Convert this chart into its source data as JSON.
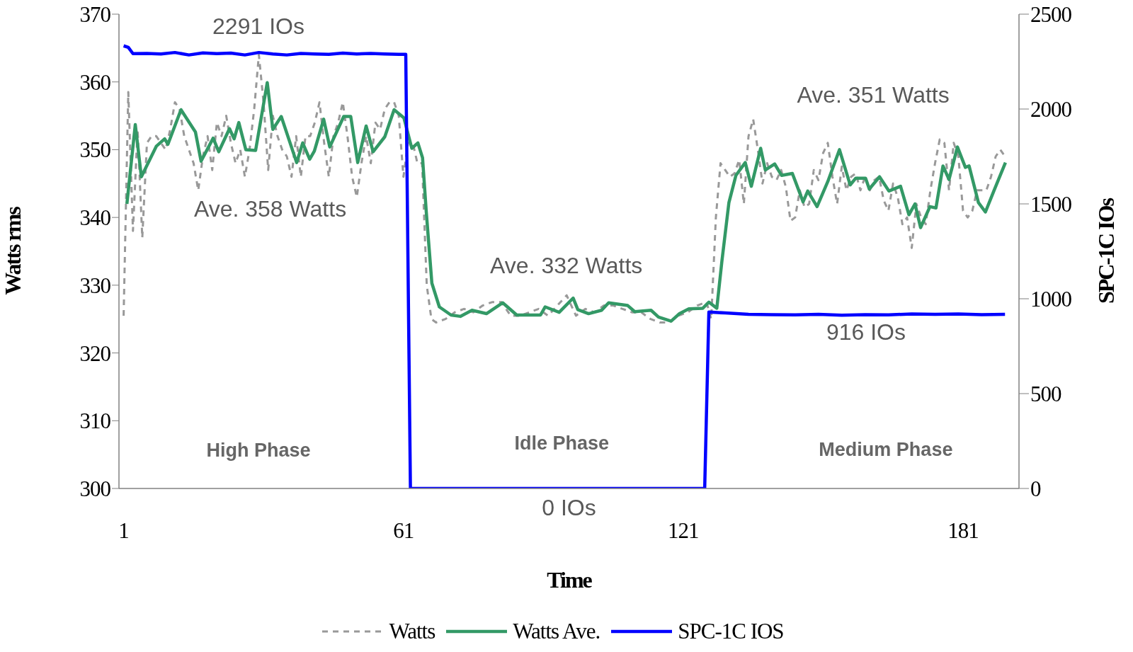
{
  "chart_data": {
    "type": "line",
    "xlabel": "Time",
    "ylabel": "Watts rms",
    "y2label": "SPC-1C IOs",
    "xlim": [
      0,
      193
    ],
    "xticks": [
      1,
      61,
      121,
      181
    ],
    "ylim": [
      300,
      370
    ],
    "yticks": [
      300,
      310,
      320,
      330,
      340,
      350,
      360,
      370
    ],
    "y2lim": [
      0,
      2500
    ],
    "y2ticks": [
      0,
      500,
      1000,
      1500,
      2000,
      2500
    ],
    "grid": false,
    "legend": "bottom",
    "marker": "none",
    "series": [
      {
        "name": "Watts",
        "color": "#999999",
        "line_style": "dashed",
        "x": [
          1,
          2,
          3,
          4,
          5,
          6,
          7,
          8,
          9,
          10,
          11,
          12,
          13,
          14,
          15,
          16,
          17,
          18,
          19,
          20,
          21,
          22,
          23,
          24,
          25,
          26,
          27,
          28,
          29,
          30,
          31,
          32,
          33,
          34,
          35,
          36,
          37,
          38,
          39,
          40,
          41,
          42,
          43,
          44,
          45,
          46,
          47,
          48,
          49,
          50,
          51,
          52,
          53,
          54,
          55,
          56,
          57,
          58,
          59,
          60,
          61,
          62,
          63,
          64,
          65,
          66,
          67,
          68,
          70,
          72,
          74,
          76,
          78,
          80,
          82,
          84,
          86,
          88,
          90,
          92,
          94,
          96,
          98,
          100,
          102,
          104,
          106,
          108,
          110,
          112,
          114,
          116,
          118,
          120,
          122,
          124,
          126,
          127,
          128,
          129,
          130,
          131,
          132,
          133,
          134,
          135,
          136,
          137,
          138,
          139,
          140,
          141,
          142,
          143,
          144,
          145,
          146,
          147,
          148,
          149,
          150,
          151,
          152,
          153,
          154,
          155,
          156,
          157,
          158,
          159,
          160,
          161,
          162,
          163,
          164,
          165,
          166,
          167,
          168,
          169,
          170,
          171,
          172,
          173,
          174,
          175,
          176,
          177,
          178,
          179,
          180,
          181,
          182,
          183,
          184,
          185,
          186,
          187,
          188,
          189,
          190
        ],
        "values": [
          325.5,
          358.5,
          338,
          353,
          337,
          351,
          352,
          352,
          351,
          350,
          353,
          357,
          356,
          352,
          350,
          348,
          344,
          349,
          352,
          347,
          354,
          352,
          355,
          351,
          348,
          350,
          346,
          350,
          356,
          364,
          357,
          347,
          355,
          352,
          350,
          349,
          346,
          352,
          346,
          352,
          352,
          354,
          357,
          351,
          346,
          352,
          354,
          357,
          352,
          346,
          343,
          348,
          352,
          348,
          354,
          353,
          356,
          357,
          357,
          355,
          346,
          351,
          351,
          348,
          348,
          330,
          325,
          324.5,
          325,
          326,
          326.5,
          326,
          327,
          327.5,
          327.5,
          325.5,
          325.5,
          326,
          326.5,
          325.5,
          327,
          328.5,
          325.5,
          326.5,
          326,
          327,
          327,
          326.5,
          326,
          326,
          325,
          324.5,
          324.5,
          325.5,
          326,
          327,
          327.5,
          325,
          340,
          348,
          347,
          346,
          346.5,
          348.5,
          342,
          352,
          354.5,
          350,
          345,
          348,
          346,
          345.5,
          347,
          344.5,
          339.5,
          340,
          344,
          341.5,
          342,
          347,
          345.5,
          349.5,
          351,
          346,
          342,
          347.5,
          344,
          346,
          346.5,
          344,
          346,
          344,
          345.5,
          346,
          342.5,
          341,
          345,
          343,
          339,
          340,
          335.5,
          342,
          340,
          339,
          344,
          348,
          351.5,
          351,
          344,
          351,
          349,
          341,
          340,
          341,
          344,
          344,
          344,
          346,
          349,
          350,
          349
        ]
      },
      {
        "name": "Watts Ave.",
        "color": "#339966",
        "line_style": "solid",
        "x": [
          1.7,
          3.5,
          4.8,
          8,
          9.8,
          10.5,
          13.3,
          16.4,
          17.6,
          20.2,
          21.4,
          23.7,
          24.7,
          25.7,
          27.2,
          29.3,
          31.8,
          33,
          34.8,
          38.1,
          39.4,
          40.9,
          41.9,
          43.9,
          45.2,
          48.2,
          49.7,
          51.2,
          53,
          54.5,
          57,
          59,
          61.1,
          62.8,
          64.1,
          65.1,
          65.9,
          67.1,
          68.7,
          71.2,
          73.2,
          75.7,
          78.8,
          82.3,
          85.3,
          90.4,
          91.4,
          94.4,
          97.4,
          98.4,
          100.7,
          103.5,
          105,
          109.1,
          110.6,
          114.1,
          115.7,
          118.4,
          120.2,
          122.2,
          125.2,
          126.5,
          128.2,
          129.3,
          130.8,
          132.3,
          134.3,
          135.6,
          137.6,
          138.6,
          140.6,
          142.1,
          144.4,
          146.7,
          147.7,
          149.7,
          152,
          154.5,
          156.8,
          158,
          160.1,
          160.9,
          163.1,
          165.1,
          167.6,
          169.4,
          170.7,
          171.9,
          173.9,
          175.2,
          176.7,
          178,
          179.8,
          181.5,
          182.3,
          184.3,
          185.8,
          187.6,
          190.1
        ],
        "values": [
          342,
          353.7,
          346,
          350.5,
          351.6,
          350.8,
          355.9,
          352.6,
          348.3,
          351.7,
          349.7,
          353.1,
          351.6,
          354,
          350,
          349.9,
          359.9,
          353,
          354.9,
          348.1,
          351,
          348.6,
          349.8,
          354.5,
          350.4,
          354.9,
          354.9,
          348.1,
          353.5,
          349.7,
          351.9,
          355.9,
          354.7,
          350.2,
          351,
          348.8,
          340.8,
          330.3,
          326.8,
          325.6,
          325.4,
          326.3,
          325.8,
          327.4,
          325.6,
          325.6,
          326.8,
          326,
          328.1,
          326.4,
          325.8,
          326.3,
          327.4,
          327,
          326.1,
          326.3,
          325.3,
          324.7,
          325.8,
          326.5,
          326.6,
          327.5,
          326.6,
          333.6,
          342.2,
          346.2,
          348.1,
          344.6,
          350.2,
          347,
          347.9,
          346.2,
          346.5,
          342.3,
          343.9,
          341.6,
          345.3,
          350,
          344.8,
          345.8,
          345.8,
          344.2,
          346,
          343.9,
          344.6,
          340.4,
          342,
          338.5,
          341.6,
          341.4,
          347.6,
          345.6,
          350.4,
          347.4,
          347.6,
          342.2,
          340.8,
          343.9,
          348.1
        ]
      },
      {
        "name": "SPC-1C IOS",
        "color": "#0000ff",
        "line_style": "solid",
        "axis": "y2",
        "x": [
          1,
          2,
          3,
          6,
          9,
          12,
          15,
          18,
          21,
          24,
          27,
          30,
          33,
          36,
          39,
          42,
          45,
          48,
          51,
          54,
          57,
          60,
          61.5,
          62.5,
          125.6,
          126.5,
          130,
          135,
          140,
          145,
          150,
          155,
          160,
          165,
          170,
          175,
          180,
          185,
          190
        ],
        "values": [
          2333,
          2325,
          2292,
          2293,
          2290,
          2298,
          2285,
          2296,
          2292,
          2295,
          2285,
          2298,
          2290,
          2285,
          2293,
          2290,
          2288,
          2295,
          2290,
          2293,
          2290,
          2288,
          2288,
          0,
          0,
          930,
          925,
          918,
          916,
          915,
          918,
          913,
          916,
          915,
          920,
          918,
          920,
          916,
          918
        ]
      }
    ],
    "annotations": [
      "2291 IOs",
      "Ave. 358 Watts",
      "Ave. 332 Watts",
      "Ave. 351 Watts",
      "916 IOs",
      "0 IOs",
      "High Phase",
      "Idle Phase",
      "Medium Phase"
    ]
  }
}
